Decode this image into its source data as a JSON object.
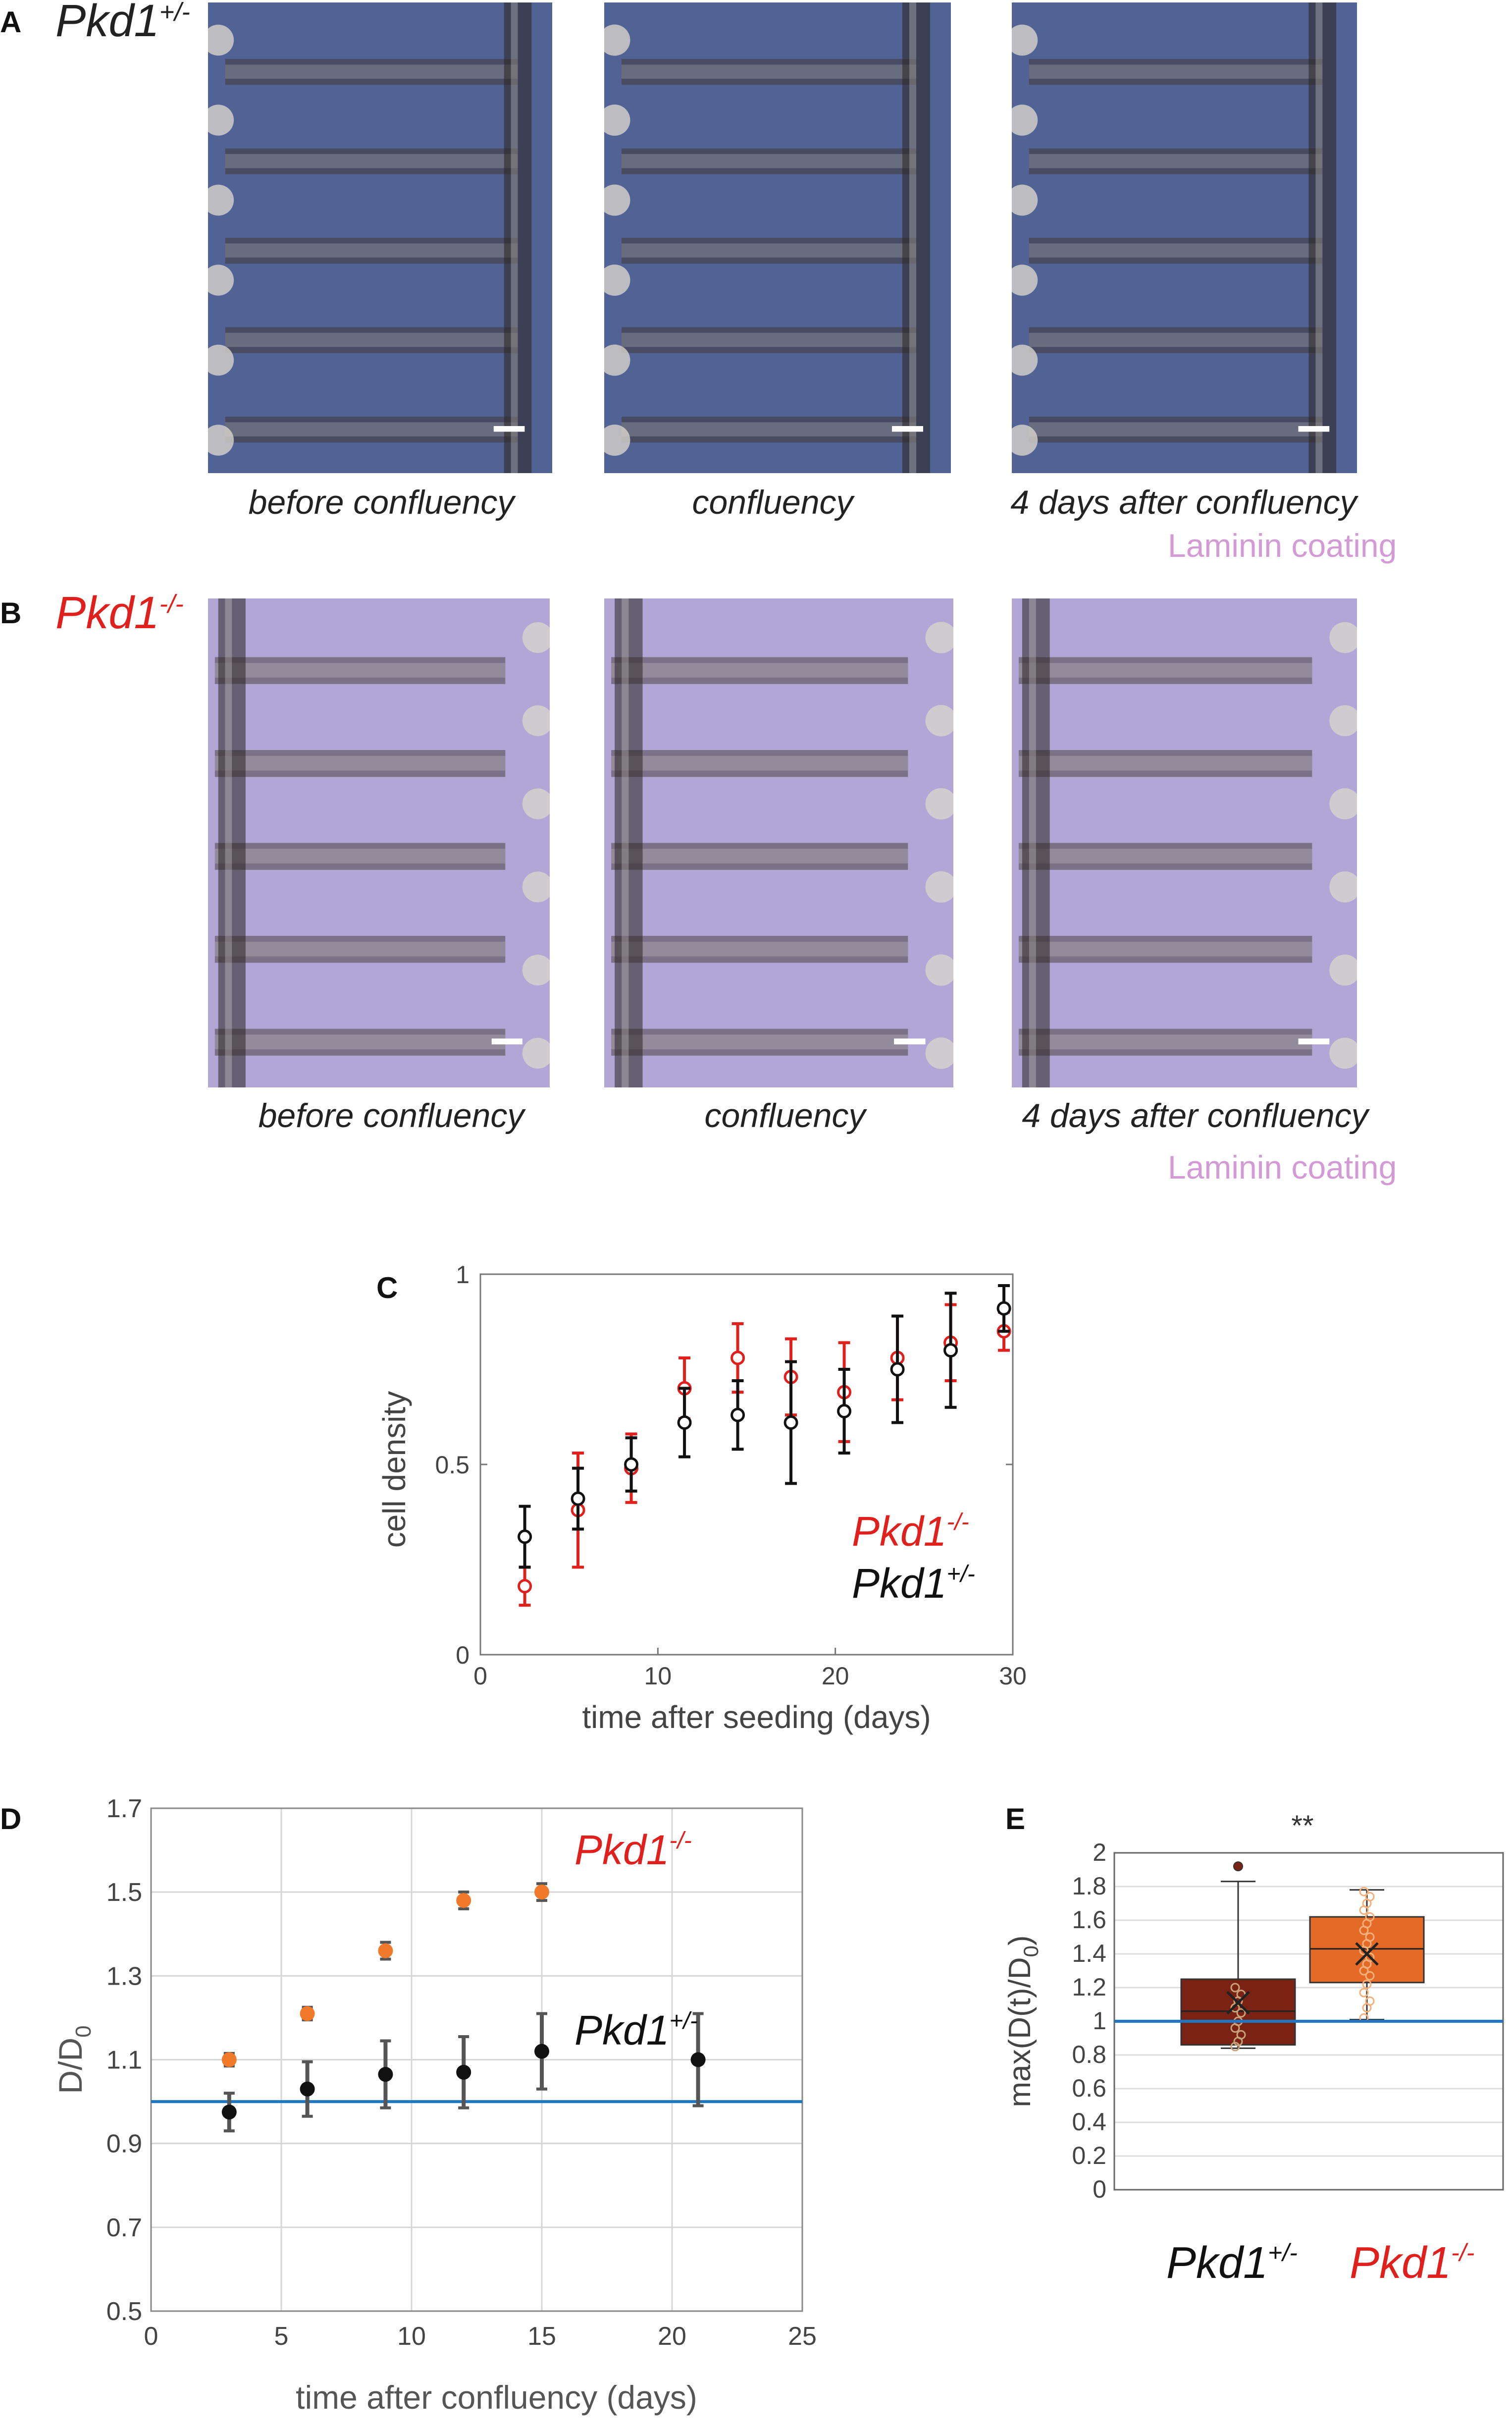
{
  "panels": {
    "A": {
      "letter": "A",
      "genotype": {
        "base": "Pkd1",
        "sup": "+/-",
        "color": "#222222"
      },
      "captions": [
        "before confluency",
        "confluency",
        "4 days after confluency"
      ],
      "coating": "Laminin coating"
    },
    "B": {
      "letter": "B",
      "genotype": {
        "base": "Pkd1",
        "sup": "-/-",
        "color": "#e0201c"
      },
      "captions": [
        "before confluency",
        "confluency",
        "4 days after confluency"
      ],
      "coating": "Laminin coating"
    },
    "C": {
      "letter": "C"
    },
    "D": {
      "letter": "D"
    },
    "E": {
      "letter": "E"
    }
  },
  "colors": {
    "black": "#111111",
    "red": "#e0201c",
    "orange": "#f07a2a",
    "dark_red_box": "#7a2314",
    "orange_box": "#e36a26",
    "baseline": "#1f77c4",
    "laminin": "#d49ad6",
    "micro_A": "#3a4d86",
    "micro_B": "#a79ad0"
  },
  "chart_data": [
    {
      "type": "scatter",
      "panel": "C",
      "xlabel": "time after seeding (days)",
      "ylabel": "cell density",
      "xlim": [
        0,
        30
      ],
      "ylim": [
        0,
        1
      ],
      "xticks": [
        0,
        10,
        20,
        30
      ],
      "yticks": [
        0,
        0.5,
        1
      ],
      "ytick_labels": [
        "0",
        "0.5",
        "1"
      ],
      "grid": false,
      "legend": {
        "placement": "bottom-right"
      },
      "series": [
        {
          "name": "Pkd1",
          "sup": "-/-",
          "color": "#e0201c",
          "marker": "open-circle",
          "x": [
            2.5,
            5.5,
            8.5,
            11.5,
            14.5,
            17.5,
            20.5,
            23.5,
            26.5,
            29.5
          ],
          "y": [
            0.18,
            0.38,
            0.49,
            0.7,
            0.78,
            0.73,
            0.69,
            0.78,
            0.82,
            0.85
          ],
          "err": [
            0.05,
            0.15,
            0.09,
            0.08,
            0.09,
            0.1,
            0.13,
            0.11,
            0.1,
            0.05
          ]
        },
        {
          "name": "Pkd1",
          "sup": "+/-",
          "color": "#111111",
          "marker": "open-circle",
          "x": [
            2.5,
            5.5,
            8.5,
            11.5,
            14.5,
            17.5,
            20.5,
            23.5,
            26.5,
            29.5
          ],
          "y": [
            0.31,
            0.41,
            0.5,
            0.61,
            0.63,
            0.61,
            0.64,
            0.75,
            0.8,
            0.91
          ],
          "err": [
            0.08,
            0.08,
            0.07,
            0.09,
            0.09,
            0.16,
            0.11,
            0.14,
            0.15,
            0.06
          ]
        }
      ]
    },
    {
      "type": "scatter",
      "panel": "D",
      "xlabel": "time after confluency (days)",
      "ylabel": "D/D",
      "ylabel_sub": "0",
      "xlim": [
        0,
        25
      ],
      "ylim": [
        0.5,
        1.7
      ],
      "xticks": [
        0,
        5,
        10,
        15,
        20,
        25
      ],
      "yticks": [
        0.5,
        0.7,
        0.9,
        1.1,
        1.3,
        1.5,
        1.7
      ],
      "ytick_labels": [
        "0.5",
        "0.7",
        "0.9",
        "1.1",
        "1.3",
        "1.5",
        "1.7"
      ],
      "grid": true,
      "reference_line": 1.0,
      "series": [
        {
          "name": "Pkd1",
          "sup": "-/-",
          "color": "#f07a2a",
          "x": [
            3,
            6,
            9,
            12,
            15
          ],
          "y": [
            1.1,
            1.21,
            1.36,
            1.48,
            1.5
          ],
          "err": [
            0.015,
            0.015,
            0.02,
            0.02,
            0.02
          ]
        },
        {
          "name": "Pkd1",
          "sup": "+/-",
          "color": "#111111",
          "x": [
            3,
            6,
            9,
            12,
            15,
            21
          ],
          "y": [
            0.975,
            1.03,
            1.065,
            1.07,
            1.12,
            1.1
          ],
          "err": [
            0.045,
            0.065,
            0.08,
            0.085,
            0.09,
            0.11
          ]
        }
      ]
    },
    {
      "type": "box",
      "panel": "E",
      "ylabel": "max(D(t)/D",
      "ylabel_sub": "0",
      "ylabel_tail": ")",
      "ylim": [
        0,
        2
      ],
      "yticks": [
        0,
        0.2,
        0.4,
        0.6,
        0.8,
        1,
        1.2,
        1.4,
        1.6,
        1.8,
        2
      ],
      "ytick_labels": [
        "0",
        "0.2",
        "0.4",
        "0.6",
        "0.8",
        "1",
        "1.2",
        "1.4",
        "1.6",
        "1.8",
        "2"
      ],
      "grid": true,
      "reference_line": 1.0,
      "significance": "**",
      "boxes": [
        {
          "name": "Pkd1",
          "sup": "+/-",
          "label_color": "#111111",
          "fill": "#7a2314",
          "q1": 0.86,
          "median": 1.06,
          "q3": 1.25,
          "whisker_low": 0.84,
          "whisker_high": 1.83,
          "mean": 1.11,
          "outliers": [
            1.92
          ],
          "points": [
            0.85,
            0.88,
            0.92,
            0.96,
            1.0,
            1.05,
            1.08,
            1.12,
            1.16,
            1.2
          ]
        },
        {
          "name": "Pkd1",
          "sup": "-/-",
          "label_color": "#e0201c",
          "fill": "#e36a26",
          "q1": 1.23,
          "median": 1.43,
          "q3": 1.62,
          "whisker_low": 1.01,
          "whisker_high": 1.78,
          "mean": 1.4,
          "outliers": [],
          "points": [
            1.02,
            1.08,
            1.12,
            1.17,
            1.22,
            1.27,
            1.3,
            1.34,
            1.38,
            1.42,
            1.46,
            1.5,
            1.54,
            1.58,
            1.62,
            1.66,
            1.7,
            1.74,
            1.77
          ]
        }
      ]
    }
  ]
}
